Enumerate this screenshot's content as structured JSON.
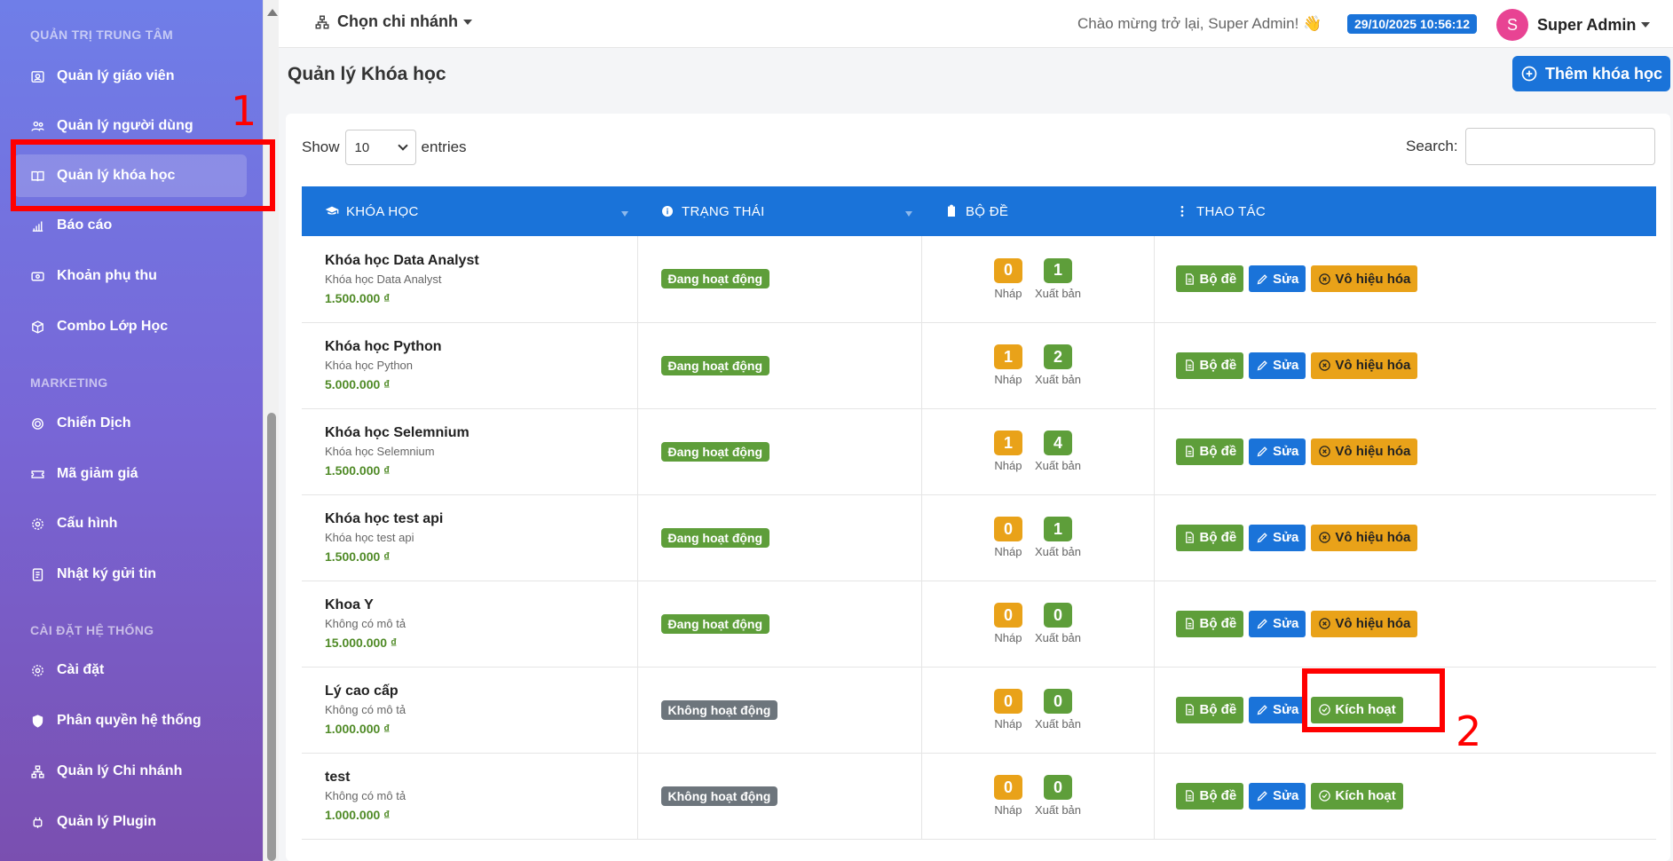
{
  "sidebar": {
    "sections": [
      {
        "title": "QUẢN TRỊ TRUNG TÂM"
      },
      {
        "title": "MARKETING"
      },
      {
        "title": "CÀI ĐẶT HỆ THỐNG"
      }
    ],
    "items": [
      {
        "label": "Quản lý giáo viên",
        "icon": "teacher-icon"
      },
      {
        "label": "Quản lý người dùng",
        "icon": "users-icon"
      },
      {
        "label": "Quản lý khóa học",
        "icon": "book-icon",
        "active": true
      },
      {
        "label": "Báo cáo",
        "icon": "chart-icon"
      },
      {
        "label": "Khoản phụ thu",
        "icon": "money-icon"
      },
      {
        "label": "Combo Lớp Học",
        "icon": "box-icon"
      },
      {
        "label": "Chiến Dịch",
        "icon": "target-icon"
      },
      {
        "label": "Mã giảm giá",
        "icon": "ticket-icon"
      },
      {
        "label": "Cấu hình",
        "icon": "gear-icon"
      },
      {
        "label": "Nhật ký gửi tin",
        "icon": "log-icon"
      },
      {
        "label": "Cài đặt",
        "icon": "settings-icon"
      },
      {
        "label": "Phân quyền hệ thống",
        "icon": "shield-icon"
      },
      {
        "label": "Quản lý Chi nhánh",
        "icon": "sitemap-icon"
      },
      {
        "label": "Quản lý Plugin",
        "icon": "plugin-icon"
      }
    ]
  },
  "header": {
    "branch_label": "Chọn chi nhánh",
    "welcome": "Chào mừng trở lại, Super Admin! 👋",
    "datetime": "29/10/2025 10:56:12",
    "avatar_letter": "S",
    "user_name": "Super Admin"
  },
  "page": {
    "title": "Quản lý Khóa học",
    "add_button": "Thêm khóa học"
  },
  "table_controls": {
    "show_label": "Show",
    "entries_value": "10",
    "entries_label": "entries",
    "search_label": "Search:"
  },
  "table": {
    "headers": [
      "KHÓA HỌC",
      "TRẠNG THÁI",
      "BỘ ĐỀ",
      "THAO TÁC"
    ],
    "draft_label": "Nháp",
    "published_label": "Xuất bản",
    "btn_exams": "Bộ đề",
    "btn_edit": "Sửa",
    "btn_disable": "Vô hiệu hóa",
    "btn_activate": "Kích hoạt",
    "rows": [
      {
        "name": "Khóa học Data Analyst",
        "desc": "Khóa học Data Analyst",
        "price": "1.500.000 ₫",
        "status": "Đang hoạt động",
        "active": true,
        "draft": "0",
        "published": "1"
      },
      {
        "name": "Khóa học Python",
        "desc": "Khóa học Python",
        "price": "5.000.000 ₫",
        "status": "Đang hoạt động",
        "active": true,
        "draft": "1",
        "published": "2"
      },
      {
        "name": "Khóa học Selemnium",
        "desc": "Khóa học Selemnium",
        "price": "1.500.000 ₫",
        "status": "Đang hoạt động",
        "active": true,
        "draft": "1",
        "published": "4"
      },
      {
        "name": "Khóa học test api",
        "desc": "Khóa học test api",
        "price": "1.500.000 ₫",
        "status": "Đang hoạt động",
        "active": true,
        "draft": "0",
        "published": "1"
      },
      {
        "name": "Khoa Y",
        "desc": "Không có mô tả",
        "price": "15.000.000 ₫",
        "status": "Đang hoạt động",
        "active": true,
        "draft": "0",
        "published": "0"
      },
      {
        "name": "Lý cao cấp",
        "desc": "Không có mô tả",
        "price": "1.000.000 ₫",
        "status": "Không hoạt động",
        "active": false,
        "draft": "0",
        "published": "0"
      },
      {
        "name": "test",
        "desc": "Không có mô tả",
        "price": "1.000.000 ₫",
        "status": "Không hoạt động",
        "active": false,
        "draft": "0",
        "published": "0"
      }
    ]
  },
  "annotations": {
    "first": "1",
    "second": "2",
    "color": "#ff0000"
  }
}
